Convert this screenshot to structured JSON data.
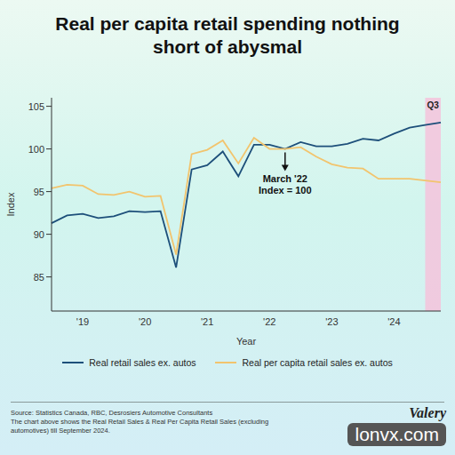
{
  "chart_data": {
    "type": "line",
    "title": "Real per capita retail spending nothing short of abysmal",
    "x_label": "Year",
    "y_label": "Index",
    "categories": [
      null,
      null,
      "'19",
      null,
      null,
      null,
      "'20",
      null,
      null,
      null,
      "'21",
      null,
      null,
      null,
      "'22",
      null,
      null,
      null,
      "'23",
      null,
      null,
      null,
      "'24",
      null,
      null,
      null
    ],
    "series": [
      {
        "name": "Real retail sales ex. autos",
        "color": "#1d4f7a",
        "values": [
          91.3,
          92.2,
          92.4,
          91.9,
          92.1,
          92.7,
          92.6,
          92.7,
          86.1,
          97.6,
          98.1,
          99.7,
          96.8,
          100.5,
          100.5,
          100.0,
          100.8,
          100.3,
          100.3,
          100.6,
          101.2,
          101.0,
          101.8,
          102.5,
          102.8,
          103.1
        ]
      },
      {
        "name": "Real per capita retail sales ex. autos",
        "color": "#f2c46d",
        "values": [
          95.4,
          95.8,
          95.7,
          94.7,
          94.6,
          95.0,
          94.4,
          94.5,
          87.6,
          99.4,
          99.9,
          101.0,
          98.3,
          101.3,
          100.0,
          100.0,
          100.2,
          99.1,
          98.2,
          97.8,
          97.7,
          96.5,
          96.5,
          96.5,
          96.3,
          96.1
        ]
      }
    ],
    "ylim": [
      81,
      106
    ],
    "yticks": [
      85,
      90,
      95,
      100,
      105
    ],
    "grid": false,
    "legend": "bottom",
    "annotation": {
      "lines": [
        "March '22",
        "Index = 100"
      ],
      "x": 15,
      "y": 100
    },
    "highlight": {
      "label": "Q3",
      "from": 24,
      "to": 25
    },
    "source": [
      "Source: Statistics Canada, RBC, Desrosiers Automotive Consultants",
      "The chart above shows the Real Retail Sales & Real Per Capita Retail Sales (excluding automotives) till September 2024."
    ],
    "watermark": [
      "Valery",
      "lonvx.com"
    ]
  }
}
